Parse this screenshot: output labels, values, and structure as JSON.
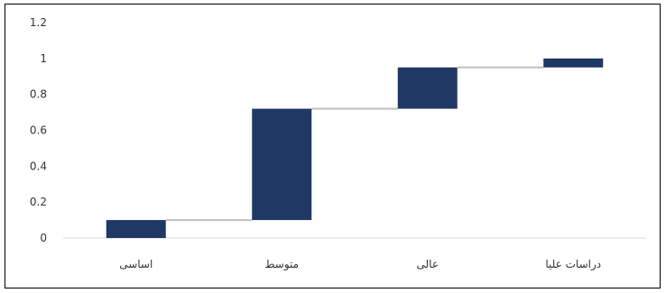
{
  "chart_data": {
    "type": "bar",
    "subtype": "waterfall",
    "categories": [
      "اساسی",
      "متوسط",
      "عالی",
      "دراسات علیا"
    ],
    "ranges": [
      [
        0.0,
        0.1
      ],
      [
        0.1,
        0.72
      ],
      [
        0.72,
        0.95
      ],
      [
        0.95,
        1.0
      ]
    ],
    "ylim": [
      0,
      1.2
    ],
    "yticks": [
      0,
      0.2,
      0.4,
      0.6,
      0.8,
      1,
      1.2
    ],
    "ytick_labels": [
      "0",
      "0.2",
      "0.4",
      "0.6",
      "0.8",
      "1",
      "1.2"
    ],
    "grid": false,
    "legend": "none",
    "colors": {
      "bar": "#1f3864",
      "connector": "#bfbfbf",
      "axis": "#d9d9d9",
      "frame": "#000000"
    }
  }
}
